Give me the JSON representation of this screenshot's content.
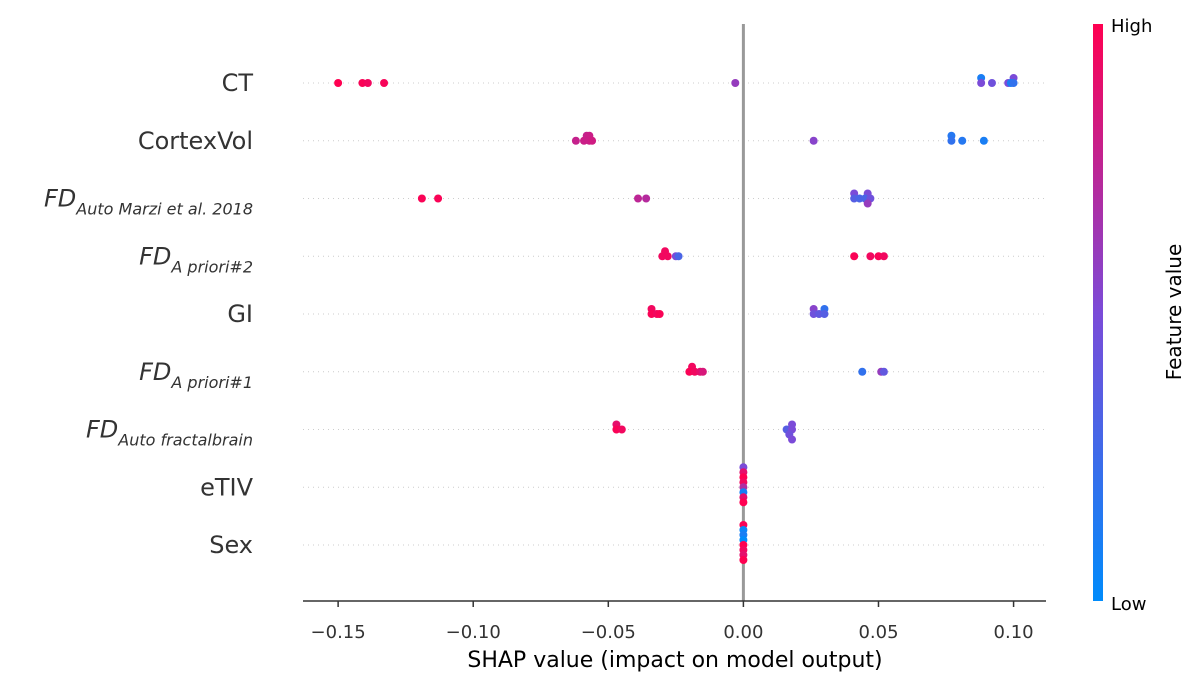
{
  "chart_data": {
    "type": "scatter",
    "xlabel": "SHAP value (impact on model output)",
    "xlim": [
      -0.163,
      0.112
    ],
    "xticks": [
      -0.15,
      -0.1,
      -0.05,
      0.0,
      0.05,
      0.1
    ],
    "xtick_labels": [
      "−0.15",
      "−0.10",
      "−0.05",
      "0.00",
      "0.05",
      "0.10"
    ],
    "grid": false,
    "colorbar": {
      "title": "Feature value",
      "high_label": "High",
      "low_label": "Low",
      "high_color": "#ff0051",
      "mid_color": "#7b4bd8",
      "low_color": "#008bfb"
    },
    "features": [
      {
        "base": "CT",
        "sub": "",
        "points": [
          {
            "x": -0.15,
            "v": 1.0,
            "o": 0
          },
          {
            "x": -0.141,
            "v": 0.98,
            "o": 0
          },
          {
            "x": -0.139,
            "v": 0.95,
            "o": 0
          },
          {
            "x": -0.133,
            "v": 0.97,
            "o": 0
          },
          {
            "x": -0.003,
            "v": 0.6,
            "o": 0
          },
          {
            "x": 0.088,
            "v": 0.1,
            "o": -1
          },
          {
            "x": 0.1,
            "v": 0.5,
            "o": -1
          },
          {
            "x": 0.088,
            "v": 0.5,
            "o": 0
          },
          {
            "x": 0.092,
            "v": 0.45,
            "o": 0
          },
          {
            "x": 0.098,
            "v": 0.5,
            "o": 0
          },
          {
            "x": 0.099,
            "v": 0.1,
            "o": 0
          },
          {
            "x": 0.1,
            "v": 0.2,
            "o": 0
          }
        ]
      },
      {
        "base": "CortexVol",
        "sub": "",
        "points": [
          {
            "x": -0.058,
            "v": 0.78,
            "o": -1
          },
          {
            "x": -0.057,
            "v": 0.8,
            "o": -1
          },
          {
            "x": -0.062,
            "v": 0.78,
            "o": 0
          },
          {
            "x": -0.059,
            "v": 0.8,
            "o": 0
          },
          {
            "x": -0.057,
            "v": 0.8,
            "o": 0
          },
          {
            "x": -0.056,
            "v": 0.82,
            "o": 0
          },
          {
            "x": 0.026,
            "v": 0.55,
            "o": 0
          },
          {
            "x": 0.077,
            "v": 0.15,
            "o": -1
          },
          {
            "x": 0.077,
            "v": 0.2,
            "o": 0
          },
          {
            "x": 0.081,
            "v": 0.15,
            "o": 0
          },
          {
            "x": 0.089,
            "v": 0.1,
            "o": 0
          }
        ]
      },
      {
        "base": "FD",
        "sub": "Auto Marzi et al. 2018",
        "points": [
          {
            "x": -0.119,
            "v": 0.98,
            "o": 0
          },
          {
            "x": -0.113,
            "v": 0.98,
            "o": 0
          },
          {
            "x": -0.039,
            "v": 0.75,
            "o": 0
          },
          {
            "x": -0.036,
            "v": 0.72,
            "o": 0
          },
          {
            "x": 0.041,
            "v": 0.5,
            "o": -1
          },
          {
            "x": 0.046,
            "v": 0.5,
            "o": -1
          },
          {
            "x": 0.041,
            "v": 0.35,
            "o": 0
          },
          {
            "x": 0.043,
            "v": 0.3,
            "o": 0
          },
          {
            "x": 0.045,
            "v": 0.3,
            "o": 0
          },
          {
            "x": 0.047,
            "v": 0.45,
            "o": 0
          },
          {
            "x": 0.046,
            "v": 0.6,
            "o": 1
          }
        ]
      },
      {
        "base": "FD",
        "sub": "A priori#2",
        "points": [
          {
            "x": -0.029,
            "v": 0.95,
            "o": -1
          },
          {
            "x": -0.03,
            "v": 0.95,
            "o": 0
          },
          {
            "x": -0.028,
            "v": 0.95,
            "o": 0
          },
          {
            "x": -0.025,
            "v": 0.5,
            "o": 0
          },
          {
            "x": -0.024,
            "v": 0.3,
            "o": 0
          },
          {
            "x": 0.041,
            "v": 0.98,
            "o": 0
          },
          {
            "x": 0.047,
            "v": 0.95,
            "o": 0
          },
          {
            "x": 0.05,
            "v": 0.98,
            "o": 0
          },
          {
            "x": 0.052,
            "v": 0.95,
            "o": 0
          }
        ]
      },
      {
        "base": "GI",
        "sub": "",
        "points": [
          {
            "x": -0.034,
            "v": 0.95,
            "o": -1
          },
          {
            "x": -0.034,
            "v": 0.98,
            "o": 0
          },
          {
            "x": -0.032,
            "v": 0.95,
            "o": 0
          },
          {
            "x": -0.031,
            "v": 0.98,
            "o": 0
          },
          {
            "x": 0.026,
            "v": 0.55,
            "o": -1
          },
          {
            "x": 0.03,
            "v": 0.2,
            "o": -1
          },
          {
            "x": 0.026,
            "v": 0.45,
            "o": 0
          },
          {
            "x": 0.028,
            "v": 0.4,
            "o": 0
          },
          {
            "x": 0.03,
            "v": 0.35,
            "o": 0
          }
        ]
      },
      {
        "base": "FD",
        "sub": "A priori#1",
        "points": [
          {
            "x": -0.019,
            "v": 0.95,
            "o": -1
          },
          {
            "x": -0.02,
            "v": 0.98,
            "o": 0
          },
          {
            "x": -0.018,
            "v": 0.95,
            "o": 0
          },
          {
            "x": -0.016,
            "v": 0.9,
            "o": 0
          },
          {
            "x": -0.015,
            "v": 0.85,
            "o": 0
          },
          {
            "x": 0.044,
            "v": 0.2,
            "o": 0
          },
          {
            "x": 0.051,
            "v": 0.6,
            "o": 0
          },
          {
            "x": 0.052,
            "v": 0.4,
            "o": 0
          }
        ]
      },
      {
        "base": "FD",
        "sub": "Auto fractalbrain",
        "points": [
          {
            "x": -0.047,
            "v": 0.9,
            "o": -1
          },
          {
            "x": -0.047,
            "v": 0.98,
            "o": 0
          },
          {
            "x": -0.045,
            "v": 0.95,
            "o": 0
          },
          {
            "x": 0.018,
            "v": 0.5,
            "o": -1
          },
          {
            "x": 0.016,
            "v": 0.35,
            "o": 0
          },
          {
            "x": 0.018,
            "v": 0.5,
            "o": 0
          },
          {
            "x": 0.017,
            "v": 0.45,
            "o": 1
          },
          {
            "x": 0.018,
            "v": 0.5,
            "o": 2
          }
        ]
      },
      {
        "base": "eTIV",
        "sub": "",
        "points": [
          {
            "x": 0.0,
            "v": 0.5,
            "o": -4
          },
          {
            "x": 0.0,
            "v": 0.9,
            "o": -3
          },
          {
            "x": 0.0,
            "v": 1.0,
            "o": -2
          },
          {
            "x": 0.0,
            "v": 0.95,
            "o": -1
          },
          {
            "x": 0.0,
            "v": 0.7,
            "o": 0
          },
          {
            "x": 0.0,
            "v": 0.1,
            "o": 1
          },
          {
            "x": 0.0,
            "v": 0.9,
            "o": 2
          },
          {
            "x": 0.0,
            "v": 1.0,
            "o": 3
          }
        ]
      },
      {
        "base": "Sex",
        "sub": "",
        "points": [
          {
            "x": 0.0,
            "v": 0.98,
            "o": -4
          },
          {
            "x": 0.0,
            "v": 0.05,
            "o": -3
          },
          {
            "x": 0.0,
            "v": 0.1,
            "o": -2
          },
          {
            "x": 0.0,
            "v": 0.0,
            "o": -1
          },
          {
            "x": 0.0,
            "v": 1.0,
            "o": 0
          },
          {
            "x": 0.0,
            "v": 0.95,
            "o": 1
          },
          {
            "x": 0.0,
            "v": 0.9,
            "o": 2
          },
          {
            "x": 0.0,
            "v": 1.0,
            "o": 3
          }
        ]
      }
    ]
  }
}
